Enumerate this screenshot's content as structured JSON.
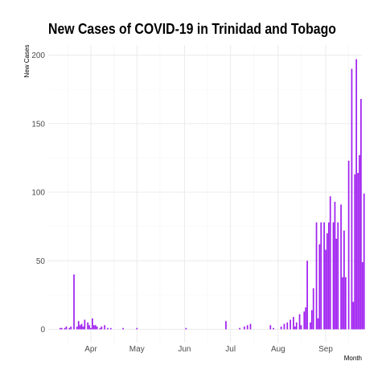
{
  "chart_data": {
    "type": "bar",
    "title": "New Cases of COVID-19 in Trinidad and Tobago",
    "xlabel": "Month",
    "ylabel": "New Cases",
    "bar_color": "#a020f0",
    "grid": true,
    "ylim": [
      0,
      200
    ],
    "yticks": [
      0,
      50,
      100,
      150,
      200
    ],
    "xlim": [
      "2020-03-01",
      "2020-09-30"
    ],
    "xticks": [
      {
        "date": "2020-04-01",
        "label": "Apr"
      },
      {
        "date": "2020-05-01",
        "label": "May"
      },
      {
        "date": "2020-06-01",
        "label": "Jun"
      },
      {
        "date": "2020-07-01",
        "label": "Jul"
      },
      {
        "date": "2020-08-01",
        "label": "Aug"
      },
      {
        "date": "2020-09-01",
        "label": "Sep"
      }
    ],
    "dates": [
      "2020-03-12",
      "2020-03-13",
      "2020-03-14",
      "2020-03-15",
      "2020-03-16",
      "2020-03-17",
      "2020-03-18",
      "2020-03-19",
      "2020-03-20",
      "2020-03-21",
      "2020-03-22",
      "2020-03-23",
      "2020-03-24",
      "2020-03-25",
      "2020-03-26",
      "2020-03-27",
      "2020-03-28",
      "2020-03-29",
      "2020-03-30",
      "2020-03-31",
      "2020-04-01",
      "2020-04-02",
      "2020-04-03",
      "2020-04-04",
      "2020-04-05",
      "2020-04-06",
      "2020-04-07",
      "2020-04-08",
      "2020-04-09",
      "2020-04-10",
      "2020-04-11",
      "2020-04-12",
      "2020-04-13",
      "2020-04-14",
      "2020-04-15",
      "2020-04-16",
      "2020-04-17",
      "2020-04-18",
      "2020-04-19",
      "2020-04-20",
      "2020-04-21",
      "2020-04-22",
      "2020-04-23",
      "2020-04-24",
      "2020-04-25",
      "2020-04-26",
      "2020-04-27",
      "2020-04-28",
      "2020-04-29",
      "2020-04-30",
      "2020-05-01",
      "2020-05-02",
      "2020-05-03",
      "2020-05-04",
      "2020-05-05",
      "2020-05-06",
      "2020-05-07",
      "2020-05-08",
      "2020-05-09",
      "2020-05-10",
      "2020-05-11",
      "2020-05-12",
      "2020-05-13",
      "2020-05-14",
      "2020-05-15",
      "2020-05-16",
      "2020-05-17",
      "2020-05-18",
      "2020-05-19",
      "2020-05-20",
      "2020-05-21",
      "2020-05-22",
      "2020-05-23",
      "2020-05-24",
      "2020-05-25",
      "2020-05-26",
      "2020-05-27",
      "2020-05-28",
      "2020-05-29",
      "2020-05-30",
      "2020-05-31",
      "2020-06-01",
      "2020-06-02",
      "2020-06-03",
      "2020-06-04",
      "2020-06-05",
      "2020-06-06",
      "2020-06-07",
      "2020-06-08",
      "2020-06-09",
      "2020-06-10",
      "2020-06-11",
      "2020-06-12",
      "2020-06-13",
      "2020-06-14",
      "2020-06-15",
      "2020-06-16",
      "2020-06-17",
      "2020-06-18",
      "2020-06-19",
      "2020-06-20",
      "2020-06-21",
      "2020-06-22",
      "2020-06-23",
      "2020-06-24",
      "2020-06-25",
      "2020-06-26",
      "2020-06-27",
      "2020-06-28",
      "2020-06-29",
      "2020-06-30",
      "2020-07-01",
      "2020-07-02",
      "2020-07-03",
      "2020-07-04",
      "2020-07-05",
      "2020-07-06",
      "2020-07-07",
      "2020-07-08",
      "2020-07-09",
      "2020-07-10",
      "2020-07-11",
      "2020-07-12",
      "2020-07-13",
      "2020-07-14",
      "2020-07-15",
      "2020-07-16",
      "2020-07-17",
      "2020-07-18",
      "2020-07-19",
      "2020-07-20",
      "2020-07-21",
      "2020-07-22",
      "2020-07-23",
      "2020-07-24",
      "2020-07-25",
      "2020-07-26",
      "2020-07-27",
      "2020-07-28",
      "2020-07-29",
      "2020-07-30",
      "2020-07-31",
      "2020-08-01",
      "2020-08-02",
      "2020-08-03",
      "2020-08-04",
      "2020-08-05",
      "2020-08-06",
      "2020-08-07",
      "2020-08-08",
      "2020-08-09",
      "2020-08-10",
      "2020-08-11",
      "2020-08-12",
      "2020-08-13",
      "2020-08-14",
      "2020-08-15",
      "2020-08-16",
      "2020-08-17",
      "2020-08-18",
      "2020-08-19",
      "2020-08-20",
      "2020-08-21",
      "2020-08-22",
      "2020-08-23",
      "2020-08-24",
      "2020-08-25",
      "2020-08-26",
      "2020-08-27",
      "2020-08-28",
      "2020-08-29",
      "2020-08-30",
      "2020-08-31",
      "2020-09-01",
      "2020-09-02",
      "2020-09-03",
      "2020-09-04",
      "2020-09-05",
      "2020-09-06",
      "2020-09-07",
      "2020-09-08",
      "2020-09-09",
      "2020-09-10",
      "2020-09-11",
      "2020-09-12",
      "2020-09-13",
      "2020-09-14",
      "2020-09-15",
      "2020-09-16",
      "2020-09-17",
      "2020-09-18",
      "2020-09-19",
      "2020-09-20",
      "2020-09-21",
      "2020-09-22",
      "2020-09-23",
      "2020-09-24",
      "2020-09-25",
      "2020-09-26",
      "2020-09-27",
      "2020-09-28",
      "2020-09-29",
      "2020-09-30"
    ],
    "values": [
      1,
      1,
      0,
      1,
      2,
      0,
      1,
      2,
      0,
      40,
      0,
      2,
      6,
      3,
      4,
      2,
      7,
      0,
      5,
      3,
      1,
      8,
      3,
      3,
      2,
      0,
      1,
      2,
      0,
      3,
      0,
      1,
      0,
      1,
      0,
      0,
      0,
      0,
      0,
      0,
      0,
      1,
      0,
      0,
      0,
      0,
      0,
      0,
      0,
      0,
      1,
      0,
      0,
      0,
      0,
      0,
      0,
      0,
      0,
      0,
      0,
      0,
      0,
      0,
      0,
      0,
      0,
      0,
      0,
      0,
      0,
      0,
      0,
      0,
      0,
      0,
      0,
      0,
      0,
      0,
      0,
      0,
      1,
      0,
      0,
      0,
      0,
      0,
      0,
      0,
      0,
      0,
      0,
      0,
      0,
      0,
      0,
      0,
      0,
      0,
      0,
      0,
      0,
      0,
      0,
      0,
      0,
      0,
      6,
      0,
      0,
      0,
      0,
      0,
      0,
      0,
      0,
      1,
      0,
      0,
      2,
      0,
      3,
      0,
      4,
      0,
      0,
      0,
      0,
      0,
      0,
      0,
      0,
      0,
      0,
      0,
      0,
      3,
      0,
      1,
      0,
      0,
      0,
      0,
      2,
      0,
      4,
      0,
      5,
      0,
      7,
      0,
      9,
      2,
      5,
      0,
      11,
      3,
      0,
      13,
      16,
      50,
      0,
      5,
      14,
      30,
      0,
      78,
      8,
      62,
      78,
      0,
      78,
      58,
      70,
      78,
      97,
      0,
      78,
      93,
      66,
      78,
      0,
      91,
      38,
      72,
      38,
      0,
      123,
      0,
      190,
      20,
      113,
      197,
      114,
      127,
      168,
      49,
      99,
      0,
      0,
      0,
      0
    ]
  }
}
